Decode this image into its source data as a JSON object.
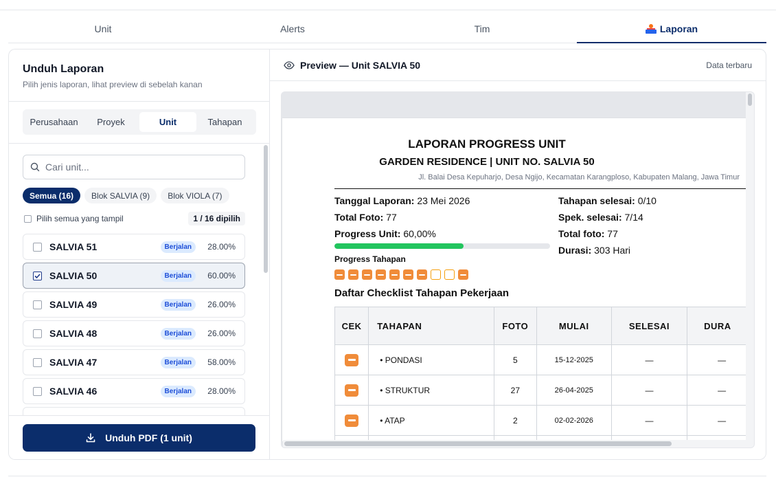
{
  "tabs": [
    {
      "label": "Unit"
    },
    {
      "label": "Alerts"
    },
    {
      "label": "Tim"
    },
    {
      "label": "Laporan",
      "icon": "reader-book-icon",
      "active": true
    }
  ],
  "left_panel": {
    "title": "Unduh Laporan",
    "subtitle": "Pilih jenis laporan, lihat preview di sebelah kanan",
    "report_types": [
      "Perusahaan",
      "Proyek",
      "Unit",
      "Tahapan"
    ],
    "active_report_type": "Unit",
    "search_placeholder": "Cari unit...",
    "filters": [
      "Semua (16)",
      "Blok SALVIA (9)",
      "Blok VIOLA (7)"
    ],
    "select_all_label": "Pilih semua yang tampil",
    "selected_count": "1 / 16 dipilih",
    "units": [
      {
        "name": "SALVIA 51",
        "status": "Berjalan",
        "progress": "28.00%",
        "selected": false
      },
      {
        "name": "SALVIA 50",
        "status": "Berjalan",
        "progress": "60.00%",
        "selected": true
      },
      {
        "name": "SALVIA 49",
        "status": "Berjalan",
        "progress": "26.00%",
        "selected": false
      },
      {
        "name": "SALVIA 48",
        "status": "Berjalan",
        "progress": "26.00%",
        "selected": false
      },
      {
        "name": "SALVIA 47",
        "status": "Berjalan",
        "progress": "58.00%",
        "selected": false
      },
      {
        "name": "SALVIA 46",
        "status": "Berjalan",
        "progress": "28.00%",
        "selected": false
      }
    ],
    "download_button": "Unduh PDF (1 unit)"
  },
  "preview": {
    "title": "Preview — Unit SALVIA 50",
    "meta": "Data terbaru",
    "doc": {
      "title": "LAPORAN PROGRESS UNIT",
      "subtitle": "GARDEN RESIDENCE | UNIT NO. SALVIA 50",
      "address": "Jl. Balai Desa Kepuharjo, Desa Ngijo, Kecamatan Karangploso, Kabupaten Malang, Jawa Timur",
      "info_left": [
        {
          "label": "Tanggal Laporan:",
          "value": "23 Mei 2026"
        },
        {
          "label": "Total Foto:",
          "value": "77"
        },
        {
          "label": "Progress Unit:",
          "value": "60,00%"
        }
      ],
      "info_right": [
        {
          "label": "Tahapan selesai:",
          "value": "0/10"
        },
        {
          "label": "Spek. selesai:",
          "value": "7/14"
        },
        {
          "label": "Total foto:",
          "value": "77"
        },
        {
          "label": "Durasi:",
          "value": "303 Hari"
        }
      ],
      "progress_fraction": 0.6,
      "progress_tahapan_label": "Progress Tahapan",
      "stages": [
        "in-progress",
        "in-progress",
        "in-progress",
        "in-progress",
        "in-progress",
        "in-progress",
        "in-progress",
        "empty",
        "empty",
        "in-progress"
      ],
      "checklist_title": "Daftar Checklist Tahapan Pekerjaan",
      "table_headers": [
        "CEK",
        "TAHAPAN",
        "FOTO",
        "MULAI",
        "SELESAI",
        "DURA"
      ],
      "table_rows": [
        {
          "tahapan": "• PONDASI",
          "foto": "5",
          "mulai": "15-12-2025",
          "selesai": "—",
          "durasi": "—"
        },
        {
          "tahapan": "• STRUKTUR",
          "foto": "27",
          "mulai": "26-04-2025",
          "selesai": "—",
          "durasi": "—"
        },
        {
          "tahapan": "• ATAP",
          "foto": "2",
          "mulai": "02-02-2026",
          "selesai": "—",
          "durasi": "—"
        }
      ]
    }
  },
  "colors": {
    "primary": "#0b2d6b",
    "progress": "#22c55e",
    "stage": "#f08c3a",
    "badge_bg": "#dbeafe",
    "badge_text": "#1d4ed8"
  }
}
